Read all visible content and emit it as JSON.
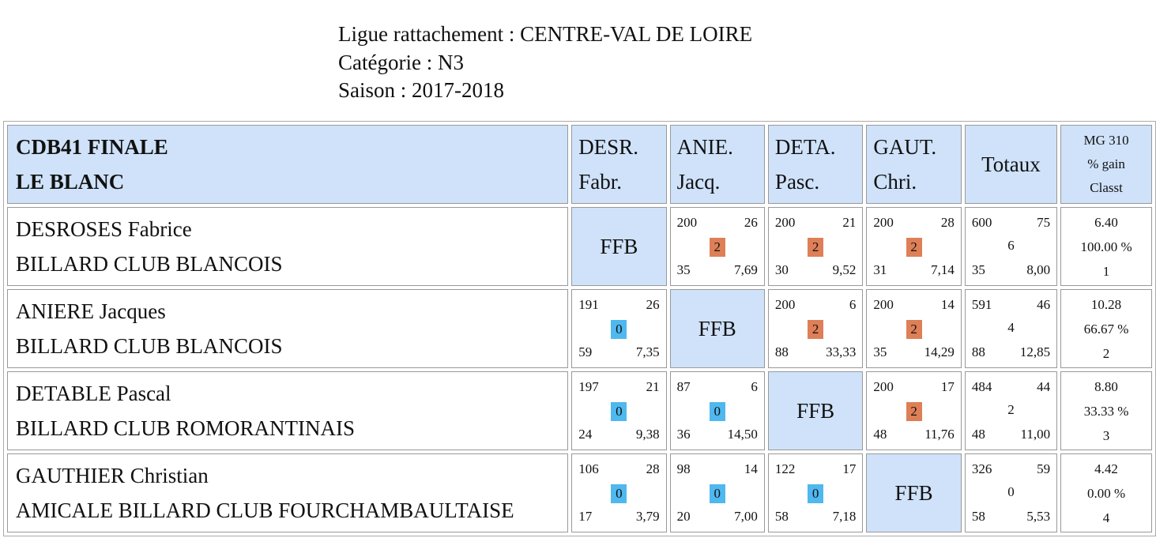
{
  "header": {
    "ligue": "Ligue rattachement : CENTRE-VAL DE LOIRE",
    "categorie": "Catégorie : N3",
    "saison": "Saison : 2017-2018"
  },
  "table": {
    "title_line1": "CDB41 FINALE",
    "title_line2": "LE BLANC",
    "columns": [
      {
        "l1": "DESR.",
        "l2": "Fabr."
      },
      {
        "l1": "ANIE.",
        "l2": "Jacq."
      },
      {
        "l1": "DETA.",
        "l2": "Pasc."
      },
      {
        "l1": "GAUT.",
        "l2": "Chri."
      }
    ],
    "totaux_label": "Totaux",
    "mg_l1": "MG 310",
    "mg_l2": "% gain",
    "mg_l3": "Classt",
    "ffb_label": "FFB",
    "players": [
      {
        "name": "DESROSES Fabrice",
        "club": "BILLARD CLUB BLANCOIS",
        "matches": [
          null,
          {
            "tl": "200",
            "tr": "26",
            "pts": "2",
            "bl": "35",
            "br": "7,69"
          },
          {
            "tl": "200",
            "tr": "21",
            "pts": "2",
            "bl": "30",
            "br": "9,52"
          },
          {
            "tl": "200",
            "tr": "28",
            "pts": "2",
            "bl": "31",
            "br": "7,14"
          }
        ],
        "totals": {
          "tl": "600",
          "tr": "75",
          "pts": "6",
          "bl": "35",
          "br": "8,00"
        },
        "mg": "6.40",
        "pct": "100.00 %",
        "rank": "1"
      },
      {
        "name": "ANIERE Jacques",
        "club": "BILLARD CLUB BLANCOIS",
        "matches": [
          {
            "tl": "191",
            "tr": "26",
            "pts": "0",
            "bl": "59",
            "br": "7,35"
          },
          null,
          {
            "tl": "200",
            "tr": "6",
            "pts": "2",
            "bl": "88",
            "br": "33,33"
          },
          {
            "tl": "200",
            "tr": "14",
            "pts": "2",
            "bl": "35",
            "br": "14,29"
          }
        ],
        "totals": {
          "tl": "591",
          "tr": "46",
          "pts": "4",
          "bl": "88",
          "br": "12,85"
        },
        "mg": "10.28",
        "pct": "66.67 %",
        "rank": "2"
      },
      {
        "name": "DETABLE Pascal",
        "club": "BILLARD CLUB ROMORANTINAIS",
        "matches": [
          {
            "tl": "197",
            "tr": "21",
            "pts": "0",
            "bl": "24",
            "br": "9,38"
          },
          {
            "tl": "87",
            "tr": "6",
            "pts": "0",
            "bl": "36",
            "br": "14,50"
          },
          null,
          {
            "tl": "200",
            "tr": "17",
            "pts": "2",
            "bl": "48",
            "br": "11,76"
          }
        ],
        "totals": {
          "tl": "484",
          "tr": "44",
          "pts": "2",
          "bl": "48",
          "br": "11,00"
        },
        "mg": "8.80",
        "pct": "33.33 %",
        "rank": "3"
      },
      {
        "name": "GAUTHIER Christian",
        "club": "AMICALE BILLARD CLUB FOURCHAMBAULTAISE",
        "matches": [
          {
            "tl": "106",
            "tr": "28",
            "pts": "0",
            "bl": "17",
            "br": "3,79"
          },
          {
            "tl": "98",
            "tr": "14",
            "pts": "0",
            "bl": "20",
            "br": "7,00"
          },
          {
            "tl": "122",
            "tr": "17",
            "pts": "0",
            "bl": "58",
            "br": "7,18"
          },
          null
        ],
        "totals": {
          "tl": "326",
          "tr": "59",
          "pts": "0",
          "bl": "58",
          "br": "5,53"
        },
        "mg": "4.42",
        "pct": "0.00 %",
        "rank": "4"
      }
    ]
  },
  "colors": {
    "header_bg": "#cfe2fa",
    "win_badge": "#de7f57",
    "loss_badge": "#4fb8ef"
  }
}
